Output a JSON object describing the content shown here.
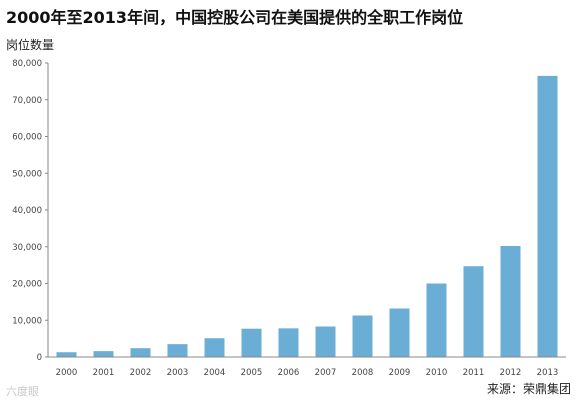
{
  "chart_data": {
    "type": "bar",
    "title": "2000年至2013年间，中国控股公司在美国提供的全职工作岗位",
    "ylabel": "岗位数量",
    "xlabel": "",
    "categories": [
      "2000",
      "2001",
      "2002",
      "2003",
      "2004",
      "2005",
      "2006",
      "2007",
      "2008",
      "2009",
      "2010",
      "2011",
      "2012",
      "2013"
    ],
    "values": [
      1300,
      1600,
      2400,
      3500,
      5100,
      7700,
      7800,
      8300,
      11300,
      13200,
      20000,
      24700,
      30200,
      76500
    ],
    "ylim": [
      0,
      80000
    ],
    "yticks": [
      "0",
      "10,000",
      "20,000",
      "30,000",
      "40,000",
      "50,000",
      "60,000",
      "70,000",
      "80,000"
    ],
    "grid": false,
    "bar_color": "#6aaed6",
    "source": "来源：荣鼎集团",
    "watermark": "六度眼"
  }
}
